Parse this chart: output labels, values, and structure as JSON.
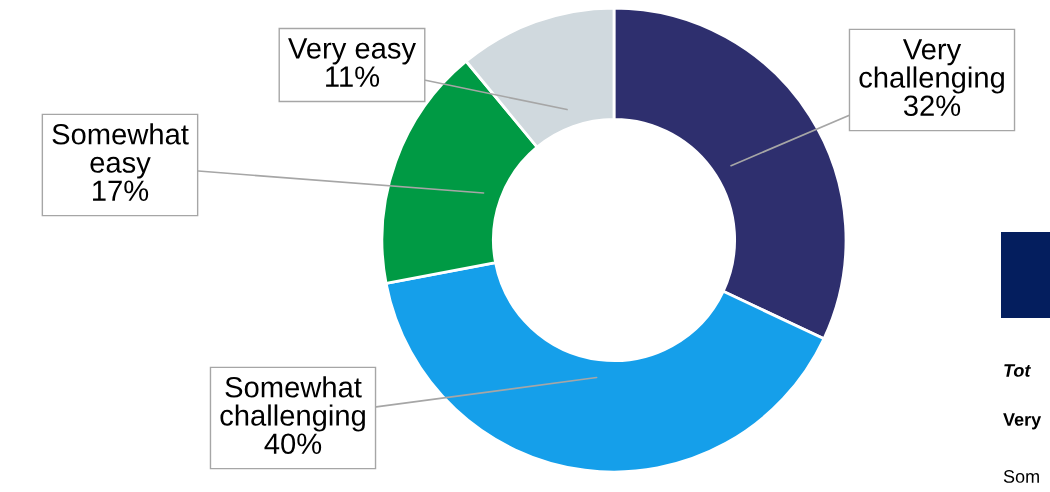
{
  "chart_data": {
    "type": "donut",
    "categories": [
      "Very\nchallenging",
      "Somewhat\nchallenging",
      "Somewhat\neasy",
      "Very easy"
    ],
    "values": [
      32,
      40,
      17,
      11
    ],
    "value_labels": [
      "32%",
      "40%",
      "17%",
      "11%"
    ],
    "colors": [
      "#2e2f6e",
      "#159fea",
      "#009a44",
      "#d0d9de"
    ],
    "legend": false,
    "annotations": [
      "Tot",
      "Very",
      "Som"
    ]
  }
}
